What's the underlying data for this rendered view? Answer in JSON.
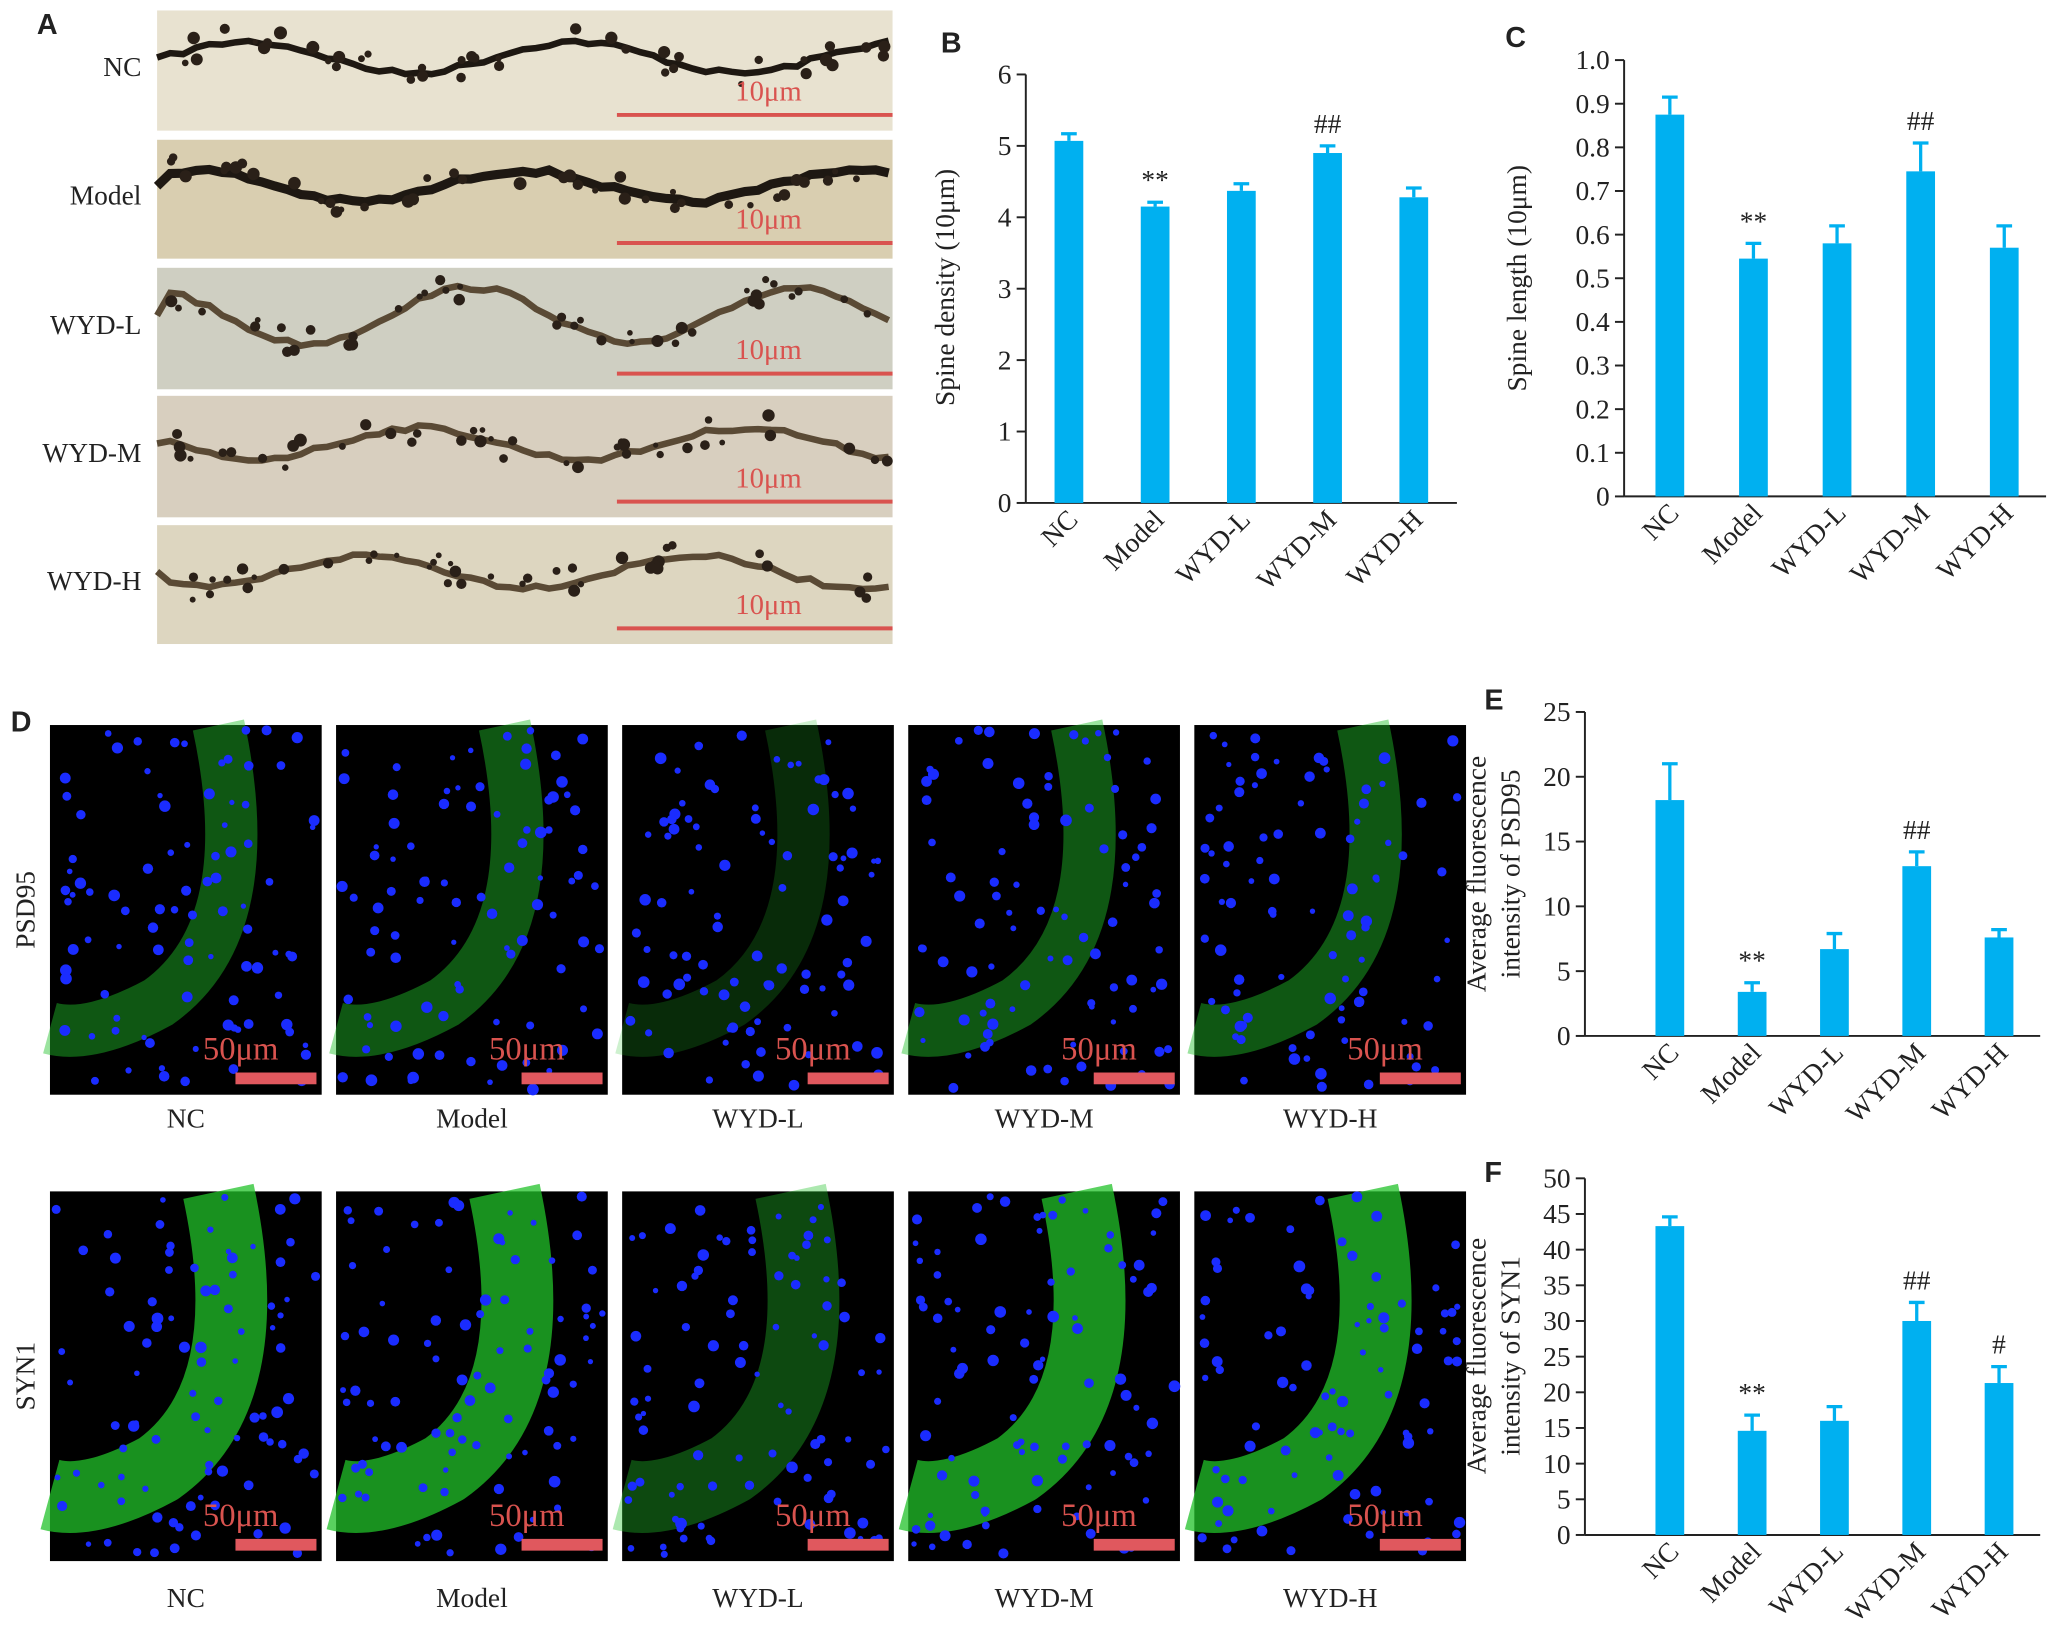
{
  "panels": {
    "A": {
      "letter": "A",
      "rows": [
        "NC",
        "Model",
        "WYD-L",
        "WYD-M",
        "WYD-H"
      ],
      "scale_bar": "10μm"
    },
    "D": {
      "letter": "D",
      "row_labels": [
        "PSD95",
        "SYN1"
      ],
      "columns": [
        "NC",
        "Model",
        "WYD-L",
        "WYD-M",
        "WYD-H"
      ],
      "scale_bar": "50μm"
    }
  },
  "chart_data": [
    {
      "type": "bar",
      "panel_label": "B",
      "y_label": [
        "Spine density (10μm)"
      ],
      "categories": [
        "NC",
        "Model",
        "WYD-L",
        "WYD-M",
        "WYD-H"
      ],
      "values": [
        5.07,
        4.15,
        4.37,
        4.9,
        4.28
      ],
      "errors": [
        0.1,
        0.06,
        0.1,
        0.1,
        0.13
      ],
      "annotations": [
        null,
        "**",
        null,
        "##",
        null
      ],
      "color": "#00b0f0",
      "ylim": [
        0,
        6
      ],
      "yticks": [
        0,
        1,
        2,
        3,
        4,
        5,
        6
      ]
    },
    {
      "type": "bar",
      "panel_label": "C",
      "y_label": [
        "Spine length (10μm)"
      ],
      "categories": [
        "NC",
        "Model",
        "WYD-L",
        "WYD-M",
        "WYD-H"
      ],
      "values": [
        0.875,
        0.545,
        0.58,
        0.745,
        0.57
      ],
      "errors": [
        0.04,
        0.035,
        0.04,
        0.065,
        0.05
      ],
      "annotations": [
        null,
        "**",
        null,
        "##",
        null
      ],
      "color": "#00b0f0",
      "ylim": [
        0,
        1
      ],
      "yticks": [
        0,
        0.1,
        0.2,
        0.3,
        0.4,
        0.5,
        0.6,
        0.7,
        0.8,
        0.9,
        {
          "value": 1,
          "label": "1.0"
        }
      ]
    },
    {
      "type": "bar",
      "panel_label": "E",
      "y_label": [
        "Average fluorescence",
        "intensity of PSD95"
      ],
      "categories": [
        "NC",
        "Model",
        "WYD-L",
        "WYD-M",
        "WYD-H"
      ],
      "values": [
        18.2,
        3.4,
        6.7,
        13.1,
        7.6
      ],
      "errors": [
        2.8,
        0.7,
        1.2,
        1.1,
        0.6
      ],
      "annotations": [
        null,
        "**",
        null,
        "##",
        null
      ],
      "color": "#00b0f0",
      "ylim": [
        0,
        25
      ],
      "yticks": [
        0,
        5,
        10,
        15,
        20,
        25
      ]
    },
    {
      "type": "bar",
      "panel_label": "F",
      "y_label": [
        "Average fluorescence",
        "intensity of SYN1"
      ],
      "categories": [
        "NC",
        "Model",
        "WYD-L",
        "WYD-M",
        "WYD-H"
      ],
      "values": [
        43.3,
        14.6,
        16,
        30,
        21.3
      ],
      "errors": [
        1.3,
        2.2,
        2,
        2.6,
        2.3
      ],
      "annotations": [
        null,
        "**",
        null,
        "##",
        "#"
      ],
      "color": "#00b0f0",
      "ylim": [
        0,
        50
      ],
      "yticks": [
        0,
        5,
        10,
        15,
        20,
        25,
        30,
        35,
        40,
        45,
        50
      ]
    }
  ]
}
